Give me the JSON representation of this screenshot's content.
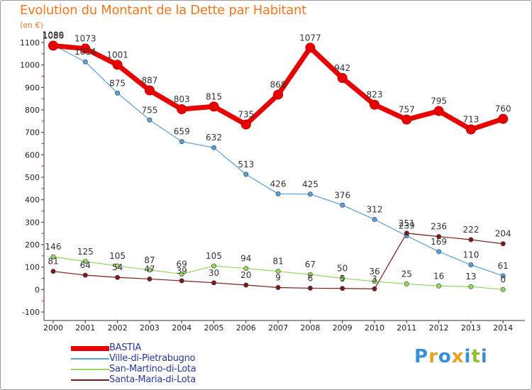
{
  "title": "Evolution du Montant de la Dette par Habitant",
  "unit": "(en €)",
  "logo": {
    "letters": [
      "P",
      "r",
      "o",
      "x",
      "i",
      "t",
      "i"
    ],
    "colors": [
      "#3a8fd8",
      "#f0a020",
      "#3a8fd8",
      "#f0a020",
      "#3a8fd8",
      "#90c030",
      "#3a8fd8"
    ]
  },
  "chart_data": {
    "type": "line",
    "title": "Evolution du Montant de la Dette par Habitant",
    "ylabel": "(en €)",
    "xlabel": "",
    "x": [
      "2000",
      "2001",
      "2002",
      "2003",
      "2004",
      "2005",
      "2006",
      "2007",
      "2008",
      "2009",
      "2010",
      "2011",
      "2012",
      "2013",
      "2014"
    ],
    "ylim": [
      -100,
      1100
    ],
    "yticks": [
      "-100",
      "0",
      "100",
      "200",
      "300",
      "400",
      "500",
      "600",
      "700",
      "800",
      "900",
      "1000",
      "1100"
    ],
    "grid": false,
    "legend": "bottom-left",
    "series": [
      {
        "name": "BASTIA",
        "color": "#e80000",
        "values": [
          1086,
          1073,
          1001,
          887,
          803,
          815,
          735,
          868,
          1077,
          942,
          823,
          757,
          795,
          713,
          760
        ],
        "labels": [
          "1086",
          "1073",
          "1001",
          "887",
          "803",
          "815",
          "735",
          "868",
          "1077",
          "942",
          "823",
          "757",
          "795",
          "713",
          "760"
        ]
      },
      {
        "name": "Ville-di-Pietrabugno",
        "color": "#5aa0d8",
        "values": [
          1089,
          1014,
          875,
          755,
          659,
          632,
          513,
          426,
          425,
          376,
          312,
          239,
          169,
          110,
          61
        ],
        "labels": [
          "1089",
          "1014",
          "875",
          "755",
          "659",
          "632",
          "513",
          "426",
          "425",
          "376",
          "312",
          "239",
          "169",
          "110",
          "61"
        ]
      },
      {
        "name": "San-Martino-di-Lota",
        "color": "#90d860",
        "values": [
          146,
          125,
          105,
          87,
          69,
          105,
          94,
          81,
          67,
          50,
          36,
          25,
          16,
          13,
          0
        ],
        "labels": [
          "146",
          "125",
          "105",
          "87",
          "69",
          "105",
          "94",
          "81",
          "67",
          "50",
          "36",
          "25",
          "16",
          "13",
          "0"
        ]
      },
      {
        "name": "Santa-Maria-di-Lota",
        "color": "#7a1a1a",
        "values": [
          81,
          64,
          54,
          47,
          39,
          30,
          20,
          9,
          6,
          5,
          3,
          251,
          236,
          222,
          204
        ],
        "labels": [
          "81",
          "64",
          "54",
          "47",
          "39",
          "30",
          "20",
          "9",
          "6",
          "5",
          "3",
          "251",
          "236",
          "222",
          "204"
        ]
      }
    ]
  }
}
